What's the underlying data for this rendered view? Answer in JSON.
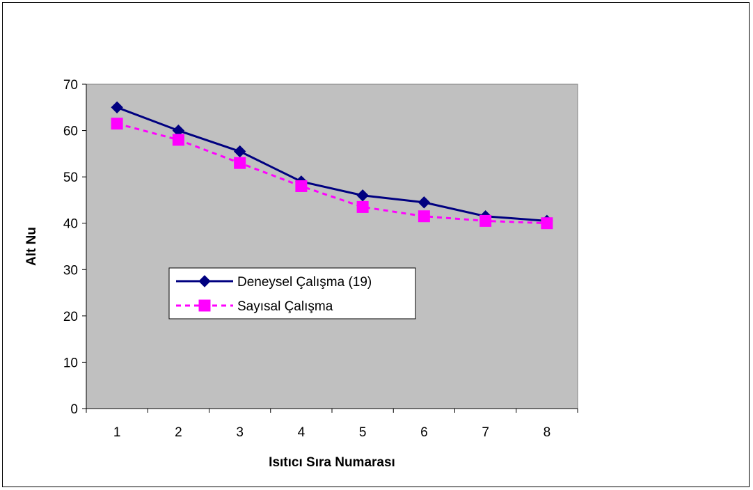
{
  "chart_data": {
    "type": "line",
    "title": "",
    "xlabel": "Isıtıcı Sıra Numarası",
    "ylabel": "Alt Nu",
    "categories": [
      "1",
      "2",
      "3",
      "4",
      "5",
      "6",
      "7",
      "8"
    ],
    "ylim": [
      0,
      70
    ],
    "yticks": [
      0,
      10,
      20,
      30,
      40,
      50,
      60,
      70
    ],
    "grid": false,
    "plot_background": "#c0c0c0",
    "legend_position": "center-left",
    "series": [
      {
        "name": "Deneysel Çalışma (19)",
        "values": [
          65,
          60,
          55.5,
          49,
          46,
          44.5,
          41.5,
          40.5
        ],
        "color": "#000080",
        "line_style": "solid",
        "marker": "diamond"
      },
      {
        "name": "Sayısal Çalışma",
        "values": [
          61.5,
          58,
          53,
          48,
          43.5,
          41.5,
          40.5,
          40
        ],
        "color": "#ff00ff",
        "line_style": "dashed",
        "marker": "square"
      }
    ]
  }
}
